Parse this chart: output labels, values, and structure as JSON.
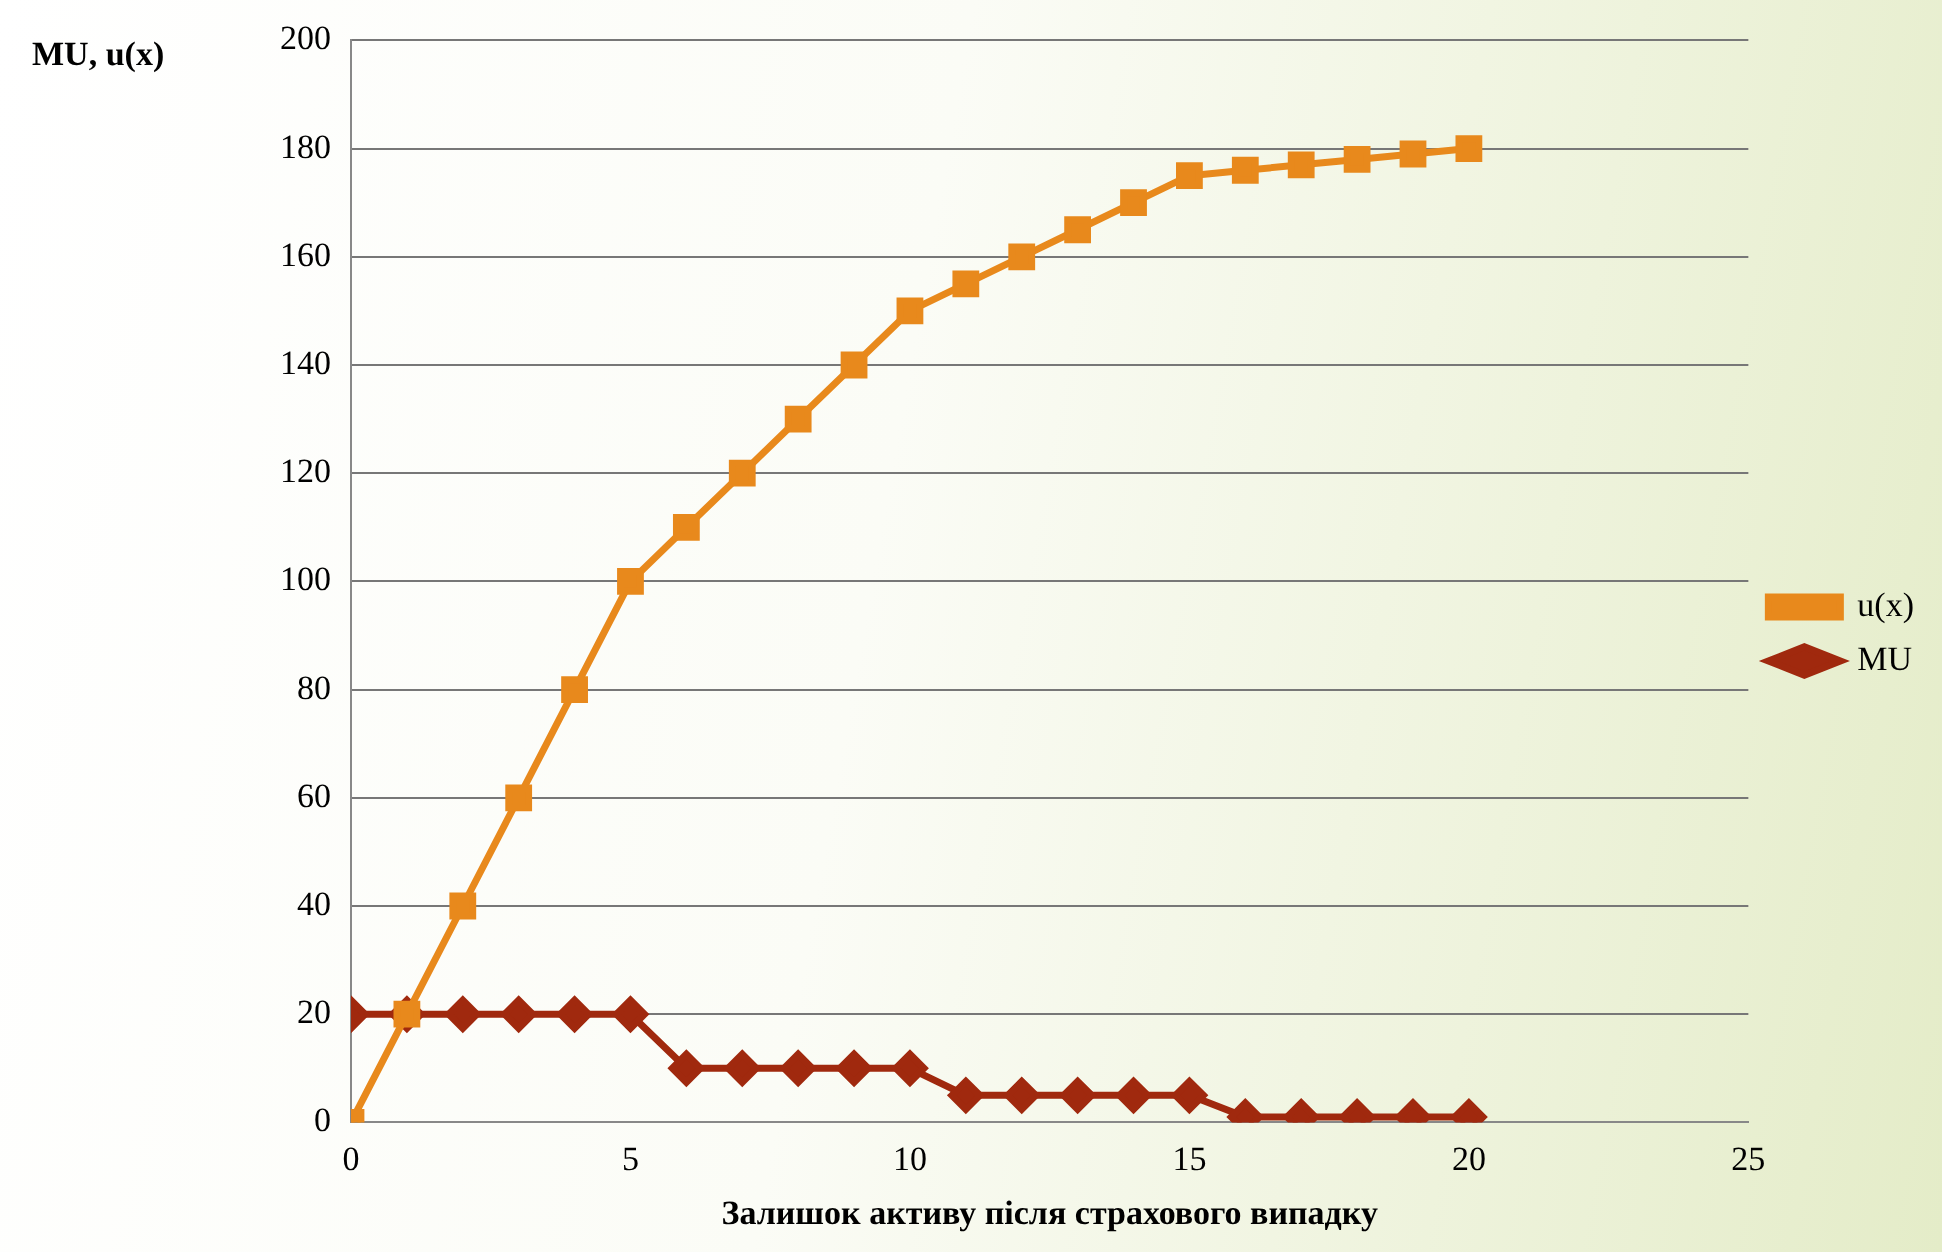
{
  "chart_data": {
    "type": "line",
    "xlabel": "Залишок активу після страхового випадку",
    "ylabel": "MU, u(x)",
    "x": [
      0,
      1,
      2,
      3,
      4,
      5,
      6,
      7,
      8,
      9,
      10,
      11,
      12,
      13,
      14,
      15,
      16,
      17,
      18,
      19,
      20
    ],
    "series": [
      {
        "name": "MU",
        "color": "#a0290e",
        "marker": "diamond",
        "values": [
          20,
          20,
          20,
          20,
          20,
          20,
          10,
          10,
          10,
          10,
          10,
          5,
          5,
          5,
          5,
          5,
          1,
          1,
          1,
          1,
          1
        ]
      },
      {
        "name": "u(x)",
        "color": "#e8891c",
        "marker": "square",
        "values": [
          0,
          20,
          40,
          60,
          80,
          100,
          110,
          120,
          130,
          140,
          150,
          155,
          160,
          165,
          170,
          175,
          176,
          177,
          178,
          179,
          180
        ]
      }
    ],
    "xlim": [
      0,
      25
    ],
    "xticks": [
      0,
      5,
      10,
      15,
      20,
      25
    ],
    "ylim": [
      0,
      200
    ],
    "yticks": [
      0,
      20,
      40,
      60,
      80,
      100,
      120,
      140,
      160,
      180,
      200
    ],
    "grid": "y",
    "legend": "right",
    "line_style": "solid"
  }
}
